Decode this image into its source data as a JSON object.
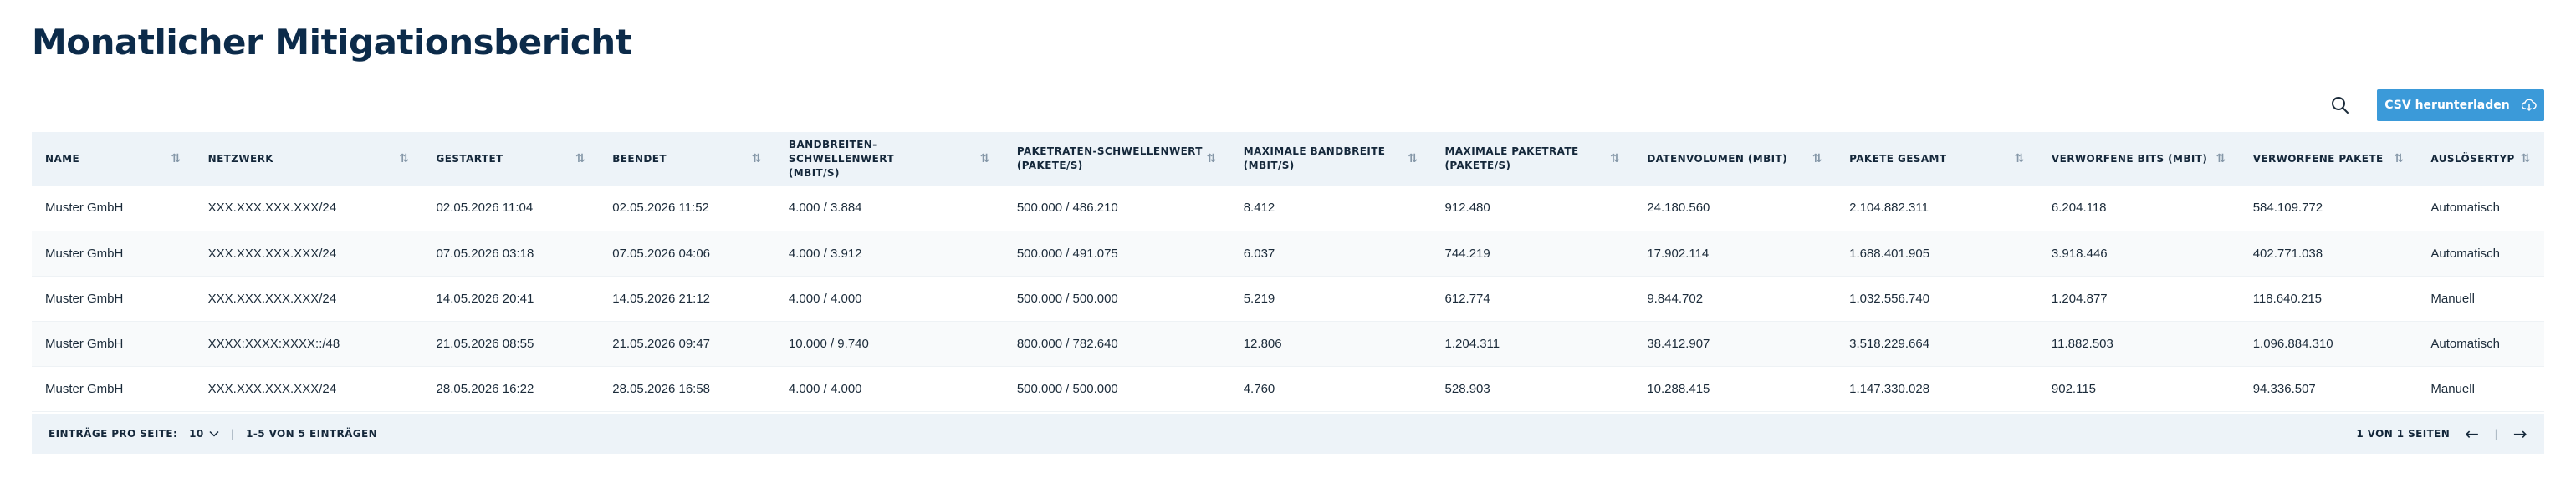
{
  "page": {
    "title": "Monatlicher Mitigationsbericht"
  },
  "toolbar": {
    "csv_label": "CSV herunterladen"
  },
  "table": {
    "columns": [
      {
        "l1": "NAME",
        "l2": ""
      },
      {
        "l1": "NETZWERK",
        "l2": ""
      },
      {
        "l1": "GESTARTET",
        "l2": ""
      },
      {
        "l1": "BEENDET",
        "l2": ""
      },
      {
        "l1": "BANDBREITEN-SCHWELLENWERT",
        "l2": "(MBIT/S)"
      },
      {
        "l1": "PAKETRATEN-SCHWELLENWERT",
        "l2": "(PAKETE/S)"
      },
      {
        "l1": "MAXIMALE BANDBREITE",
        "l2": "(MBIT/S)"
      },
      {
        "l1": "MAXIMALE PAKETRATE",
        "l2": "(PAKETE/S)"
      },
      {
        "l1": "DATENVOLUMEN (MBIT)",
        "l2": ""
      },
      {
        "l1": "PAKETE GESAMT",
        "l2": ""
      },
      {
        "l1": "VERWORFENE BITS (MBIT)",
        "l2": ""
      },
      {
        "l1": "VERWORFENE PAKETE",
        "l2": ""
      },
      {
        "l1": "AUSLÖSERTYP",
        "l2": ""
      }
    ],
    "rows": [
      [
        "Muster GmbH",
        "XXX.XXX.XXX.XXX/24",
        "02.05.2026 11:04",
        "02.05.2026 11:52",
        "4.000 / 3.884",
        "500.000 / 486.210",
        "8.412",
        "912.480",
        "24.180.560",
        "2.104.882.311",
        "6.204.118",
        "584.109.772",
        "Automatisch"
      ],
      [
        "Muster GmbH",
        "XXX.XXX.XXX.XXX/24",
        "07.05.2026 03:18",
        "07.05.2026 04:06",
        "4.000 / 3.912",
        "500.000 / 491.075",
        "6.037",
        "744.219",
        "17.902.114",
        "1.688.401.905",
        "3.918.446",
        "402.771.038",
        "Automatisch"
      ],
      [
        "Muster GmbH",
        "XXX.XXX.XXX.XXX/24",
        "14.05.2026 20:41",
        "14.05.2026 21:12",
        "4.000 / 4.000",
        "500.000 / 500.000",
        "5.219",
        "612.774",
        "9.844.702",
        "1.032.556.740",
        "1.204.877",
        "118.640.215",
        "Manuell"
      ],
      [
        "Muster GmbH",
        "XXXX:XXXX:XXXX::/48",
        "21.05.2026 08:55",
        "21.05.2026 09:47",
        "10.000 / 9.740",
        "800.000 / 782.640",
        "12.806",
        "1.204.311",
        "38.412.907",
        "3.518.229.664",
        "11.882.503",
        "1.096.884.310",
        "Automatisch"
      ],
      [
        "Muster GmbH",
        "XXX.XXX.XXX.XXX/24",
        "28.05.2026 16:22",
        "28.05.2026 16:58",
        "4.000 / 4.000",
        "500.000 / 500.000",
        "4.760",
        "528.903",
        "10.288.415",
        "1.147.330.028",
        "902.115",
        "94.336.507",
        "Manuell"
      ]
    ]
  },
  "footer": {
    "per_page_label": "EINTRÄGE PRO SEITE:",
    "per_page_value": "10",
    "range_text": "1-5 VON 5 EINTRÄGEN",
    "page_text": "1 VON 1 SEITEN",
    "prev_icon": "arrow-left-icon",
    "next_icon": "arrow-right-icon"
  },
  "colors": {
    "title": "#0c2b4a",
    "accent": "#3b9ad9",
    "header_bg": "#edf3f8"
  }
}
